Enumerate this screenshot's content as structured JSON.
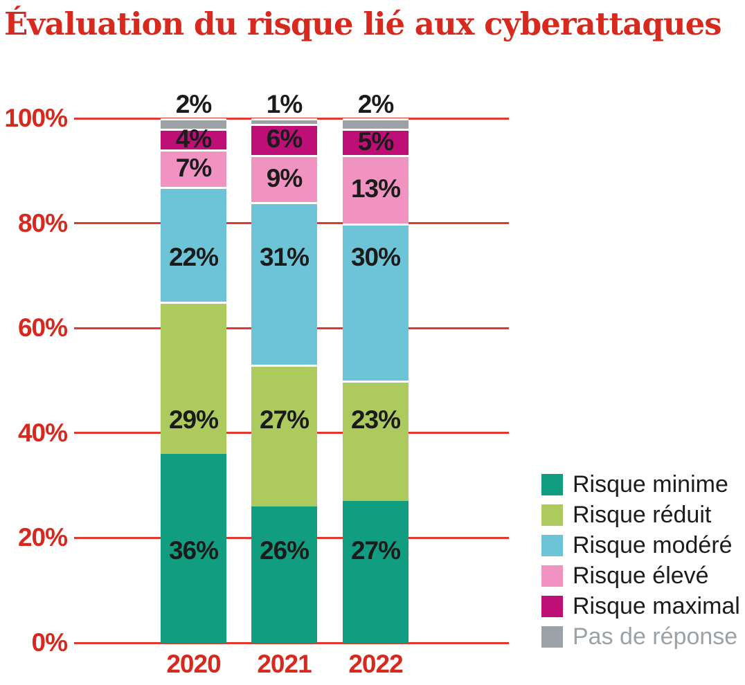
{
  "title": "Évaluation du risque lié aux cyberattaques",
  "colors": {
    "accent_red_text": "#d7291e",
    "grid_red_line": "#e2382b",
    "bar_label_black": "#1b1b1b",
    "legend_muted_gray": "#9ca1a5"
  },
  "chart_data": {
    "type": "bar",
    "stacked": true,
    "title": "Évaluation du risque lié aux cyberattaques",
    "categories": [
      "2020",
      "2021",
      "2022"
    ],
    "series": [
      {
        "name": "Risque minime",
        "color": "#109d80",
        "values": [
          36,
          26,
          27
        ]
      },
      {
        "name": "Risque réduit",
        "color": "#adca5f",
        "values": [
          29,
          27,
          23
        ]
      },
      {
        "name": "Risque modéré",
        "color": "#6ec4d7",
        "values": [
          22,
          31,
          30
        ]
      },
      {
        "name": "Risque élevé",
        "color": "#f193c0",
        "values": [
          7,
          9,
          13
        ]
      },
      {
        "name": "Risque maximal",
        "color": "#bd0f76",
        "values": [
          4,
          6,
          5
        ]
      },
      {
        "name": "Pas de réponse",
        "color": "#9ca1a5",
        "values": [
          2,
          1,
          2
        ],
        "muted_label": true
      }
    ],
    "value_label_suffix": "%",
    "y_tick_values": [
      0,
      20,
      40,
      60,
      80,
      100
    ],
    "y_tick_labels": [
      "0%",
      "20%",
      "40%",
      "60%",
      "80%",
      "100%"
    ],
    "ylim": [
      0,
      100
    ],
    "grid": true,
    "gridline_color": "#e2382b",
    "legend_position": "bottom-right"
  }
}
